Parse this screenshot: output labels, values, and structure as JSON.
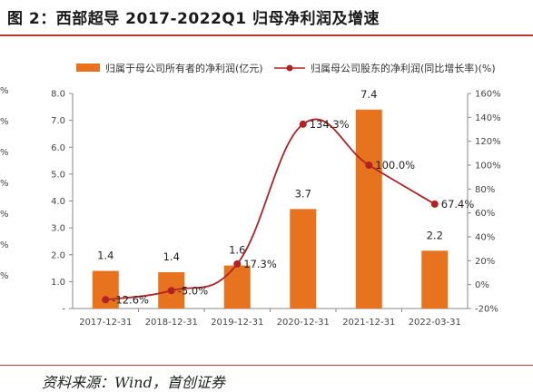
{
  "figure": {
    "title": "图 2：西部超导 2017-2022Q1 归母净利润及增速",
    "source": "资料来源：Wind，首创证券"
  },
  "chart_data": {
    "type": "bar",
    "categories": [
      "2017-12-31",
      "2018-12-31",
      "2019-12-31",
      "2020-12-31",
      "2021-12-31",
      "2022-03-31"
    ],
    "y_left": {
      "min": 0,
      "max": 8,
      "ticks": [
        "-",
        "1.0",
        "2.0",
        "3.0",
        "4.0",
        "5.0",
        "6.0",
        "7.0",
        "8.0"
      ]
    },
    "y_right": {
      "min": -20,
      "max": 160,
      "ticks": [
        "-20%",
        "0%",
        "20%",
        "40%",
        "60%",
        "80%",
        "100%",
        "120%",
        "140%",
        "160%"
      ]
    },
    "series": [
      {
        "name": "归属于母公司所有者的净利润(亿元)",
        "type": "bar",
        "axis": "left",
        "color": "#e8731e",
        "values": [
          1.4,
          1.35,
          1.6,
          3.7,
          7.4,
          2.15
        ],
        "labels": [
          "1.4",
          "1.4",
          "1.6",
          "3.7",
          "7.4",
          "2.2"
        ]
      },
      {
        "name": "归属母公司股东的净利润(同比增长率)(%)",
        "type": "line",
        "axis": "right",
        "color": "#b22222",
        "values": [
          -12.6,
          -5.0,
          17.3,
          134.3,
          100.0,
          67.4
        ],
        "labels": [
          "-12.6%",
          "-5.0%",
          "17.3%",
          "134.3%",
          "100.0%",
          "67.4%"
        ]
      }
    ],
    "legend": "top",
    "grid": false
  }
}
